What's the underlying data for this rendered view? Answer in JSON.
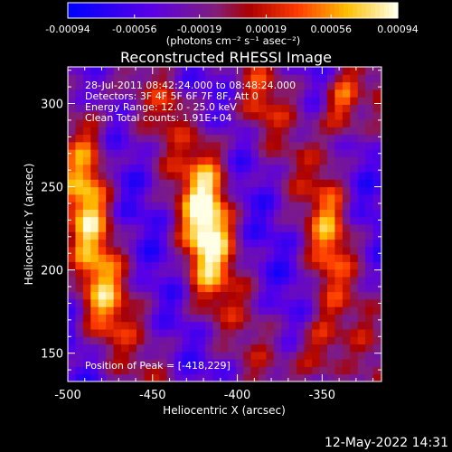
{
  "chart_data": {
    "type": "heatmap",
    "title": "Reconstructed RHESSI Image",
    "xlabel": "Heliocentric X (arcsec)",
    "ylabel": "Heliocentric Y (arcsec)",
    "xlim": [
      -500,
      -315
    ],
    "ylim": [
      133,
      322
    ],
    "x_ticks": [
      {
        "v": -500,
        "label": "-500"
      },
      {
        "v": -450,
        "label": "-450"
      },
      {
        "v": -400,
        "label": "-400"
      },
      {
        "v": -350,
        "label": "-350"
      }
    ],
    "y_ticks": [
      {
        "v": 150,
        "label": "150"
      },
      {
        "v": 200,
        "label": "200"
      },
      {
        "v": 250,
        "label": "250"
      },
      {
        "v": 300,
        "label": "300"
      }
    ],
    "colorbar": {
      "min": -0.00094,
      "max": 0.00094,
      "ticks": [
        {
          "v": -0.00094,
          "label": "-0.00094"
        },
        {
          "v": -0.00056,
          "label": "-0.00056"
        },
        {
          "v": -0.00019,
          "label": "-0.00019"
        },
        {
          "v": 0.00019,
          "label": "0.00019"
        },
        {
          "v": 0.00056,
          "label": "0.00056"
        },
        {
          "v": 0.00094,
          "label": "0.00094"
        }
      ],
      "units": "(photons cm⁻² s⁻¹ asec⁻²)"
    },
    "info_lines": [
      "28-Jul-2011 08:42:24.000 to 08:48:24.000",
      "Detectors: 3F 4F 5F 6F 7F 8F, Att 0",
      "Energy Range: 12.0 - 25.0 keV",
      "Clean     Total counts: 1.91E+04"
    ],
    "peak_label": "Position of Peak = [-418,229]",
    "peak": {
      "x": -418,
      "y": 229
    },
    "sources": [
      {
        "x": -418,
        "y": 229,
        "sx": 10,
        "sy": 34,
        "amp": 1.0
      },
      {
        "x": -488,
        "y": 248,
        "sx": 9,
        "sy": 40,
        "amp": 0.72
      },
      {
        "x": -478,
        "y": 180,
        "sx": 9,
        "sy": 22,
        "amp": 0.5
      },
      {
        "x": -338,
        "y": 300,
        "sx": 8,
        "sy": 16,
        "amp": 0.78
      },
      {
        "x": -346,
        "y": 225,
        "sx": 8,
        "sy": 30,
        "amp": 0.5
      },
      {
        "x": -352,
        "y": 150,
        "sx": 10,
        "sy": 18,
        "amp": 0.6
      },
      {
        "x": -388,
        "y": 300,
        "sx": 8,
        "sy": 14,
        "amp": 0.35
      },
      {
        "x": -440,
        "y": 300,
        "sx": 6,
        "sy": 10,
        "amp": 0.3
      }
    ],
    "timestamp": "12-May-2022 14:31"
  }
}
